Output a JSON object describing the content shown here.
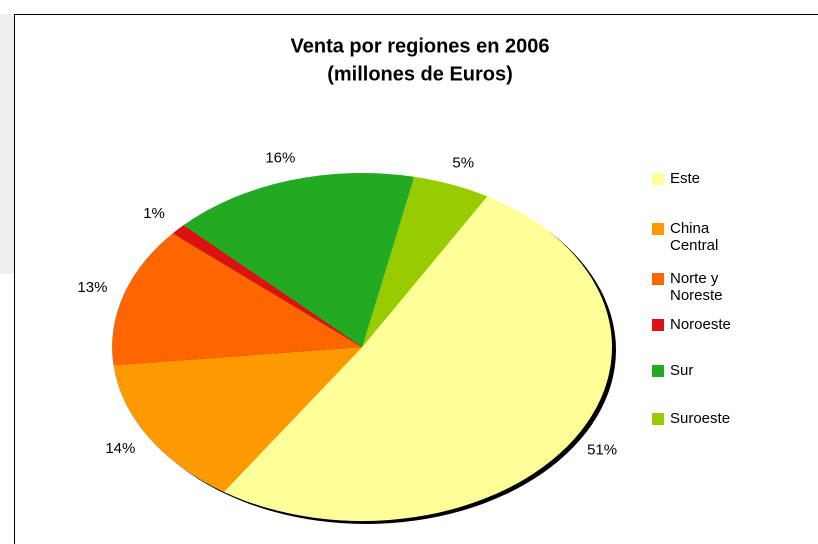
{
  "chart_data": {
    "type": "pie",
    "title": "Venta por regiones en 2006",
    "subtitle": "(millones de Euros)",
    "categories": [
      "Este",
      "China Central",
      "Norte y Noreste",
      "Noroeste",
      "Sur",
      "Suroeste"
    ],
    "values": [
      51,
      14,
      13,
      1,
      16,
      5
    ],
    "value_labels": [
      "51%",
      "14%",
      "13%",
      "1%",
      "16%",
      "5%"
    ],
    "colors": [
      "#ffff99",
      "#ff9900",
      "#ff6600",
      "#dd1111",
      "#22aa22",
      "#99cc00"
    ],
    "legend": "right"
  }
}
